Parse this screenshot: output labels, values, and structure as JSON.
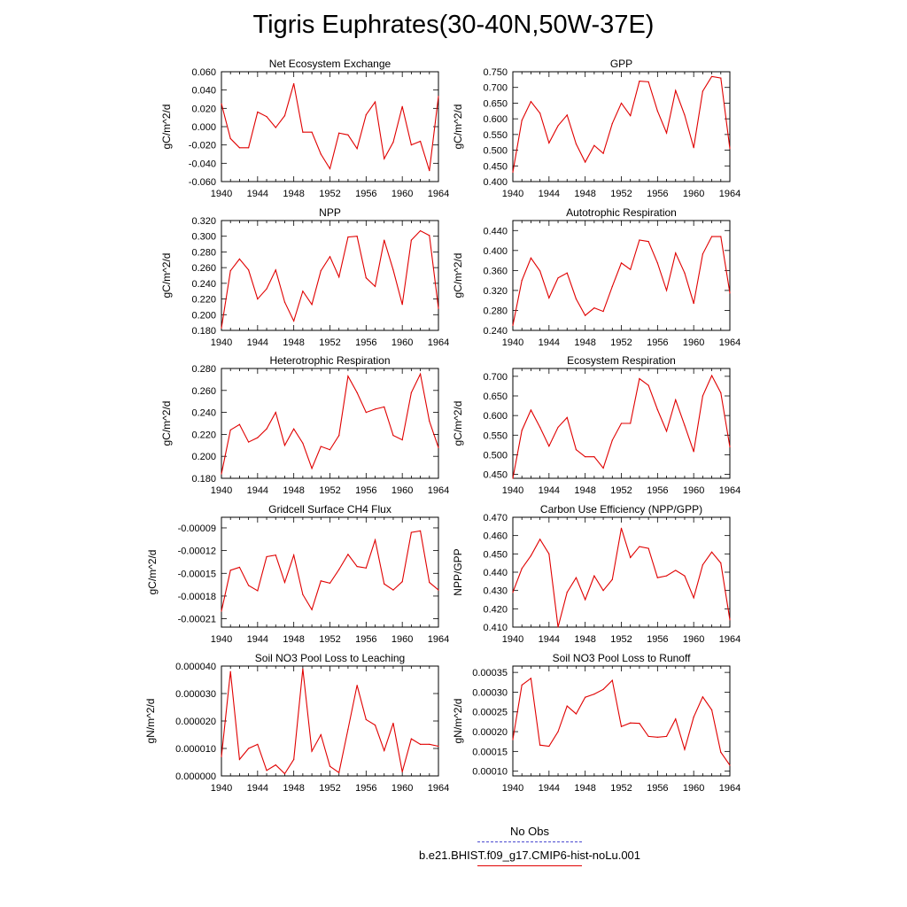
{
  "title": "Tigris Euphrates(30-40N,50W-37E)",
  "legend": {
    "obs_label": "No Obs",
    "model_label": "b.e21.BHIST.f09_g17.CMIP6-hist-noLu.001",
    "obs_color": "#4a4ad0",
    "model_color": "#e00000"
  },
  "chart_data": [
    {
      "type": "line",
      "title": "Net Ecosystem Exchange",
      "ylabel": "gC/m^2/d",
      "x": [
        1940,
        1941,
        1942,
        1943,
        1944,
        1945,
        1946,
        1947,
        1948,
        1949,
        1950,
        1951,
        1952,
        1953,
        1954,
        1955,
        1956,
        1957,
        1958,
        1959,
        1960,
        1961,
        1962,
        1963,
        1964
      ],
      "xticks": [
        "1940",
        "1944",
        "1948",
        "1952",
        "1956",
        "1960",
        "1964"
      ],
      "ylim": [
        -0.06,
        0.06
      ],
      "yticks": [
        "0.060",
        "0.040",
        "0.020",
        "0.000",
        "-0.020",
        "-0.040",
        "-0.060"
      ],
      "series": [
        {
          "values": [
            0.025,
            -0.013,
            -0.023,
            -0.023,
            0.016,
            0.011,
            -0.001,
            0.012,
            0.047,
            -0.006,
            -0.006,
            -0.03,
            -0.046,
            -0.007,
            -0.009,
            -0.024,
            0.013,
            0.027,
            -0.035,
            -0.017,
            0.022,
            -0.02,
            -0.016,
            -0.048,
            0.033
          ]
        }
      ]
    },
    {
      "type": "line",
      "title": "GPP",
      "ylabel": "gC/m^2/d",
      "x": [
        1940,
        1941,
        1942,
        1943,
        1944,
        1945,
        1946,
        1947,
        1948,
        1949,
        1950,
        1951,
        1952,
        1953,
        1954,
        1955,
        1956,
        1957,
        1958,
        1959,
        1960,
        1961,
        1962,
        1963,
        1964
      ],
      "xticks": [
        "1940",
        "1944",
        "1948",
        "1952",
        "1956",
        "1960",
        "1964"
      ],
      "ylim": [
        0.4,
        0.75
      ],
      "yticks": [
        "0.750",
        "0.700",
        "0.650",
        "0.600",
        "0.550",
        "0.500",
        "0.450",
        "0.400"
      ],
      "series": [
        {
          "values": [
            0.43,
            0.595,
            0.655,
            0.618,
            0.523,
            0.578,
            0.612,
            0.52,
            0.462,
            0.515,
            0.49,
            0.585,
            0.65,
            0.61,
            0.72,
            0.718,
            0.625,
            0.555,
            0.69,
            0.612,
            0.508,
            0.688,
            0.735,
            0.73,
            0.505
          ]
        }
      ]
    },
    {
      "type": "line",
      "title": "NPP",
      "ylabel": "gC/m^2/d",
      "x": [
        1940,
        1941,
        1942,
        1943,
        1944,
        1945,
        1946,
        1947,
        1948,
        1949,
        1950,
        1951,
        1952,
        1953,
        1954,
        1955,
        1956,
        1957,
        1958,
        1959,
        1960,
        1961,
        1962,
        1963,
        1964
      ],
      "xticks": [
        "1940",
        "1944",
        "1948",
        "1952",
        "1956",
        "1960",
        "1964"
      ],
      "ylim": [
        0.18,
        0.32
      ],
      "yticks": [
        "0.320",
        "0.300",
        "0.280",
        "0.260",
        "0.240",
        "0.220",
        "0.200",
        "0.180"
      ],
      "series": [
        {
          "values": [
            0.183,
            0.256,
            0.271,
            0.257,
            0.22,
            0.233,
            0.257,
            0.216,
            0.192,
            0.23,
            0.213,
            0.256,
            0.274,
            0.248,
            0.299,
            0.3,
            0.247,
            0.236,
            0.295,
            0.257,
            0.213,
            0.295,
            0.307,
            0.301,
            0.208
          ]
        }
      ]
    },
    {
      "type": "line",
      "title": "Autotrophic Respiration",
      "ylabel": "gC/m^2/d",
      "x": [
        1940,
        1941,
        1942,
        1943,
        1944,
        1945,
        1946,
        1947,
        1948,
        1949,
        1950,
        1951,
        1952,
        1953,
        1954,
        1955,
        1956,
        1957,
        1958,
        1959,
        1960,
        1961,
        1962,
        1963,
        1964
      ],
      "xticks": [
        "1940",
        "1944",
        "1948",
        "1952",
        "1956",
        "1960",
        "1964"
      ],
      "ylim": [
        0.24,
        0.46
      ],
      "yticks": [
        "0.440",
        "0.400",
        "0.360",
        "0.320",
        "0.280",
        "0.240"
      ],
      "series": [
        {
          "values": [
            0.25,
            0.34,
            0.385,
            0.359,
            0.305,
            0.345,
            0.355,
            0.303,
            0.27,
            0.285,
            0.278,
            0.328,
            0.375,
            0.362,
            0.421,
            0.418,
            0.375,
            0.32,
            0.395,
            0.355,
            0.294,
            0.393,
            0.428,
            0.428,
            0.315
          ]
        }
      ]
    },
    {
      "type": "line",
      "title": "Heterotrophic Respiration",
      "ylabel": "gC/m^2/d",
      "x": [
        1940,
        1941,
        1942,
        1943,
        1944,
        1945,
        1946,
        1947,
        1948,
        1949,
        1950,
        1951,
        1952,
        1953,
        1954,
        1955,
        1956,
        1957,
        1958,
        1959,
        1960,
        1961,
        1962,
        1963,
        1964
      ],
      "xticks": [
        "1940",
        "1944",
        "1948",
        "1952",
        "1956",
        "1960",
        "1964"
      ],
      "ylim": [
        0.18,
        0.28
      ],
      "yticks": [
        "0.280",
        "0.260",
        "0.240",
        "0.220",
        "0.200",
        "0.180"
      ],
      "series": [
        {
          "values": [
            0.184,
            0.224,
            0.229,
            0.213,
            0.217,
            0.225,
            0.24,
            0.21,
            0.225,
            0.212,
            0.189,
            0.209,
            0.206,
            0.219,
            0.273,
            0.258,
            0.24,
            0.243,
            0.245,
            0.219,
            0.215,
            0.258,
            0.275,
            0.232,
            0.208
          ]
        }
      ]
    },
    {
      "type": "line",
      "title": "Ecosystem Respiration",
      "ylabel": "gC/m^2/d",
      "x": [
        1940,
        1941,
        1942,
        1943,
        1944,
        1945,
        1946,
        1947,
        1948,
        1949,
        1950,
        1951,
        1952,
        1953,
        1954,
        1955,
        1956,
        1957,
        1958,
        1959,
        1960,
        1961,
        1962,
        1963,
        1964
      ],
      "xticks": [
        "1940",
        "1944",
        "1948",
        "1952",
        "1956",
        "1960",
        "1964"
      ],
      "ylim": [
        0.44,
        0.72
      ],
      "yticks": [
        "0.700",
        "0.650",
        "0.600",
        "0.550",
        "0.500",
        "0.450"
      ],
      "series": [
        {
          "values": [
            0.44,
            0.562,
            0.614,
            0.57,
            0.522,
            0.57,
            0.595,
            0.513,
            0.495,
            0.495,
            0.466,
            0.537,
            0.58,
            0.58,
            0.694,
            0.677,
            0.615,
            0.56,
            0.64,
            0.575,
            0.508,
            0.65,
            0.702,
            0.658,
            0.52
          ]
        }
      ]
    },
    {
      "type": "line",
      "title": "Gridcell Surface CH4 Flux",
      "ylabel": "gC/m^2/d",
      "x": [
        1940,
        1941,
        1942,
        1943,
        1944,
        1945,
        1946,
        1947,
        1948,
        1949,
        1950,
        1951,
        1952,
        1953,
        1954,
        1955,
        1956,
        1957,
        1958,
        1959,
        1960,
        1961,
        1962,
        1963,
        1964
      ],
      "xticks": [
        "1940",
        "1944",
        "1948",
        "1952",
        "1956",
        "1960",
        "1964"
      ],
      "ylim": [
        -0.000221,
        -7.6e-05
      ],
      "yticks": [
        "-0.00009",
        "-0.00012",
        "-0.00015",
        "-0.00018",
        "-0.00021"
      ],
      "series": [
        {
          "values": [
            -0.0002,
            -0.000146,
            -0.000142,
            -0.000166,
            -0.000173,
            -0.000128,
            -0.000126,
            -0.000162,
            -0.000126,
            -0.000178,
            -0.000198,
            -0.00016,
            -0.000163,
            -0.000145,
            -0.000125,
            -0.000141,
            -0.000143,
            -0.000106,
            -0.000164,
            -0.000172,
            -0.000161,
            -9.6e-05,
            -9.4e-05,
            -0.000162,
            -0.000172
          ]
        }
      ]
    },
    {
      "type": "line",
      "title": "Carbon Use Efficiency (NPP/GPP)",
      "ylabel": "NPP/GPP",
      "x": [
        1940,
        1941,
        1942,
        1943,
        1944,
        1945,
        1946,
        1947,
        1948,
        1949,
        1950,
        1951,
        1952,
        1953,
        1954,
        1955,
        1956,
        1957,
        1958,
        1959,
        1960,
        1961,
        1962,
        1963,
        1964
      ],
      "xticks": [
        "1940",
        "1944",
        "1948",
        "1952",
        "1956",
        "1960",
        "1964"
      ],
      "ylim": [
        0.41,
        0.47
      ],
      "yticks": [
        "0.470",
        "0.460",
        "0.450",
        "0.440",
        "0.430",
        "0.420",
        "0.410"
      ],
      "series": [
        {
          "values": [
            0.429,
            0.442,
            0.449,
            0.458,
            0.45,
            0.41,
            0.429,
            0.437,
            0.425,
            0.438,
            0.43,
            0.436,
            0.464,
            0.448,
            0.454,
            0.453,
            0.437,
            0.438,
            0.441,
            0.438,
            0.426,
            0.444,
            0.451,
            0.445,
            0.414
          ]
        }
      ]
    },
    {
      "type": "line",
      "title": "Soil NO3 Pool Loss to Leaching",
      "ylabel": "gN/m^2/d",
      "x": [
        1940,
        1941,
        1942,
        1943,
        1944,
        1945,
        1946,
        1947,
        1948,
        1949,
        1950,
        1951,
        1952,
        1953,
        1954,
        1955,
        1956,
        1957,
        1958,
        1959,
        1960,
        1961,
        1962,
        1963,
        1964
      ],
      "xticks": [
        "1940",
        "1944",
        "1948",
        "1952",
        "1956",
        "1960",
        "1964"
      ],
      "ylim": [
        0.0,
        4e-05
      ],
      "yticks": [
        "0.000040",
        "0.000030",
        "0.000020",
        "0.000010",
        "0.000000"
      ],
      "series": [
        {
          "values": [
            7e-06,
            3.8e-05,
            6e-06,
            1e-05,
            1.15e-05,
            2e-06,
            4e-06,
            8e-07,
            6e-06,
            3.9e-05,
            9e-06,
            1.5e-05,
            3.5e-06,
            1.2e-06,
            1.7e-05,
            3.3e-05,
            2.05e-05,
            1.85e-05,
            9.2e-06,
            1.92e-05,
            1.5e-06,
            1.35e-05,
            1.15e-05,
            1.15e-05,
            1.08e-05
          ]
        }
      ]
    },
    {
      "type": "line",
      "title": "Soil NO3 Pool Loss to Runoff",
      "ylabel": "gN/m^2/d",
      "x": [
        1940,
        1941,
        1942,
        1943,
        1944,
        1945,
        1946,
        1947,
        1948,
        1949,
        1950,
        1951,
        1952,
        1953,
        1954,
        1955,
        1956,
        1957,
        1958,
        1959,
        1960,
        1961,
        1962,
        1963,
        1964
      ],
      "xticks": [
        "1940",
        "1944",
        "1948",
        "1952",
        "1956",
        "1960",
        "1964"
      ],
      "ylim": [
        8.8e-05,
        0.000366
      ],
      "yticks": [
        "0.00035",
        "0.00030",
        "0.00025",
        "0.00020",
        "0.00015",
        "0.00010"
      ],
      "series": [
        {
          "values": [
            0.00018,
            0.000318,
            0.000335,
            0.000166,
            0.000163,
            0.0002,
            0.000265,
            0.000245,
            0.000287,
            0.000295,
            0.000307,
            0.00033,
            0.000213,
            0.000222,
            0.000221,
            0.000188,
            0.000186,
            0.000188,
            0.000232,
            0.000155,
            0.000237,
            0.000288,
            0.000255,
            0.000148,
            0.000115
          ]
        }
      ]
    }
  ]
}
